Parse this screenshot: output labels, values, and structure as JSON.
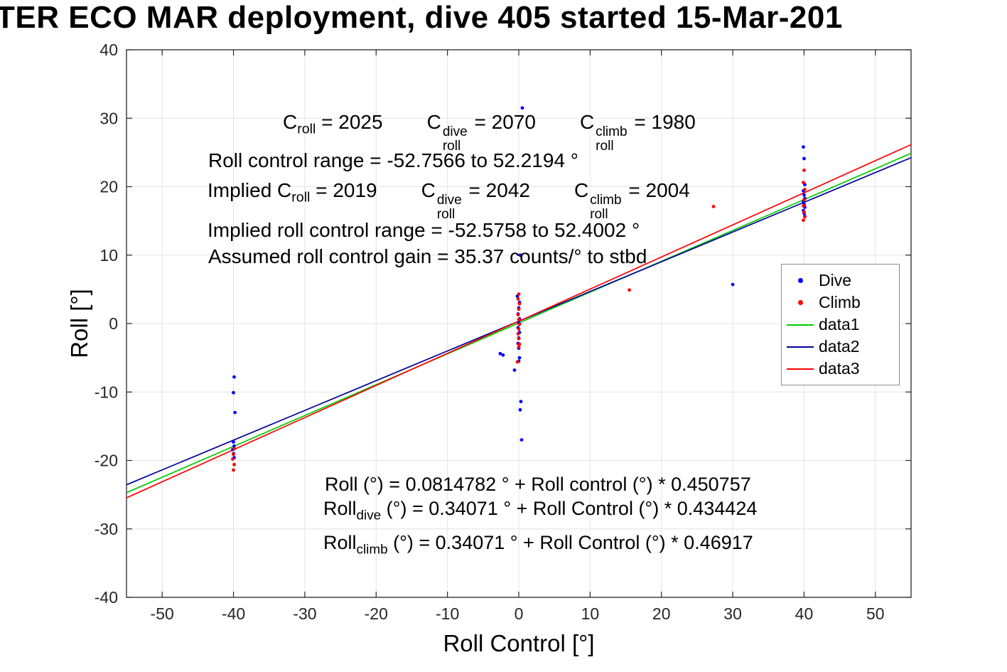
{
  "chart_data": {
    "type": "scatter",
    "title": "TER ECO MAR deployment, dive 405 started 15-Mar-201",
    "xlabel": "Roll Control [°]",
    "ylabel": "Roll [°]",
    "xlim": [
      -55,
      55
    ],
    "ylim": [
      -40,
      40
    ],
    "xticks": [
      -50,
      -40,
      -30,
      -20,
      -10,
      0,
      10,
      20,
      30,
      40,
      50
    ],
    "yticks": [
      -40,
      -30,
      -20,
      -10,
      0,
      10,
      20,
      30,
      40
    ],
    "grid": true,
    "legend_position": "right",
    "series": [
      {
        "name": "Dive",
        "type": "scatter",
        "color": "#0000ff",
        "points": [
          [
            -39.9,
            -7.8
          ],
          [
            -40.0,
            -10.1
          ],
          [
            -39.8,
            -13.0
          ],
          [
            -40.0,
            -17.3
          ],
          [
            -39.9,
            -17.9
          ],
          [
            -40.1,
            -18.4
          ],
          [
            -40.0,
            -19.0
          ],
          [
            -39.9,
            -19.6
          ],
          [
            0.5,
            31.5
          ],
          [
            0.2,
            10.0
          ],
          [
            -0.2,
            4.0
          ],
          [
            0.1,
            3.1
          ],
          [
            0.0,
            2.3
          ],
          [
            -0.1,
            1.4
          ],
          [
            0.1,
            0.7
          ],
          [
            0.0,
            0.1
          ],
          [
            -0.1,
            -0.6
          ],
          [
            0.1,
            -1.3
          ],
          [
            0.0,
            -2.1
          ],
          [
            -0.1,
            -2.9
          ],
          [
            0.0,
            -3.6
          ],
          [
            -2.6,
            -4.4
          ],
          [
            -2.2,
            -4.6
          ],
          [
            0.1,
            -5.0
          ],
          [
            0.0,
            -5.5
          ],
          [
            -0.6,
            -6.8
          ],
          [
            0.3,
            -11.4
          ],
          [
            0.2,
            -12.6
          ],
          [
            0.4,
            -17.0
          ],
          [
            30.0,
            5.7
          ],
          [
            39.9,
            25.8
          ],
          [
            40.0,
            24.1
          ],
          [
            40.1,
            20.3
          ],
          [
            39.9,
            19.4
          ],
          [
            40.0,
            18.8
          ],
          [
            40.1,
            18.3
          ],
          [
            39.9,
            17.8
          ],
          [
            40.0,
            17.4
          ],
          [
            40.1,
            17.0
          ],
          [
            39.9,
            16.5
          ],
          [
            40.0,
            16.1
          ],
          [
            40.1,
            15.7
          ]
        ]
      },
      {
        "name": "Climb",
        "type": "scatter",
        "color": "#ff0000",
        "points": [
          [
            -39.9,
            -18.3
          ],
          [
            -40.0,
            -19.1
          ],
          [
            -40.1,
            -19.8
          ],
          [
            -39.9,
            -20.6
          ],
          [
            -40.0,
            -21.4
          ],
          [
            0.0,
            4.3
          ],
          [
            -0.1,
            3.6
          ],
          [
            0.1,
            2.9
          ],
          [
            0.0,
            2.1
          ],
          [
            -0.1,
            1.3
          ],
          [
            0.0,
            0.6
          ],
          [
            0.1,
            -0.1
          ],
          [
            0.0,
            -0.8
          ],
          [
            -0.1,
            -1.5
          ],
          [
            0.0,
            -2.2
          ],
          [
            0.1,
            -3.0
          ],
          [
            0.0,
            -3.4
          ],
          [
            -0.2,
            -5.6
          ],
          [
            15.5,
            4.9
          ],
          [
            27.3,
            17.1
          ],
          [
            40.0,
            22.4
          ],
          [
            39.9,
            20.6
          ],
          [
            40.1,
            19.6
          ],
          [
            40.0,
            18.1
          ],
          [
            39.9,
            17.2
          ],
          [
            40.0,
            16.3
          ],
          [
            40.1,
            15.6
          ],
          [
            39.9,
            15.1
          ]
        ]
      },
      {
        "name": "data1",
        "type": "line",
        "color": "#00cc00",
        "slope": 0.450757,
        "intercept": 0.0814782
      },
      {
        "name": "data2",
        "type": "line",
        "color": "#000099",
        "slope": 0.434424,
        "intercept": 0.34071
      },
      {
        "name": "data3",
        "type": "line",
        "color": "#ff0000",
        "slope": 0.46917,
        "intercept": 0.34071
      }
    ]
  },
  "annotations": {
    "row1": {
      "a": "C_{roll} = 2025",
      "b": "C_{roll}^{dive} = 2070",
      "c": "C_{roll}^{climb} = 1980"
    },
    "row2": "Roll control range = -52.7566 to 52.2194 °",
    "row3": {
      "a": "Implied C_{roll} = 2019",
      "b": "C_{roll}^{dive} = 2042",
      "c": "C_{roll}^{climb} = 2004"
    },
    "row4": "Implied roll control range = -52.5758 to 52.4002 °",
    "row5": "Assumed roll control gain = 35.37 counts/° to stbd",
    "fit1": "Roll (°) = 0.0814782 ° + Roll control (°) * 0.450757",
    "fit2": "Roll_{dive} (°) = 0.34071 ° + Roll Control (°) * 0.434424",
    "fit3": "Roll_{climb} (°) = 0.34071 ° + Roll Control (°) * 0.46917"
  }
}
